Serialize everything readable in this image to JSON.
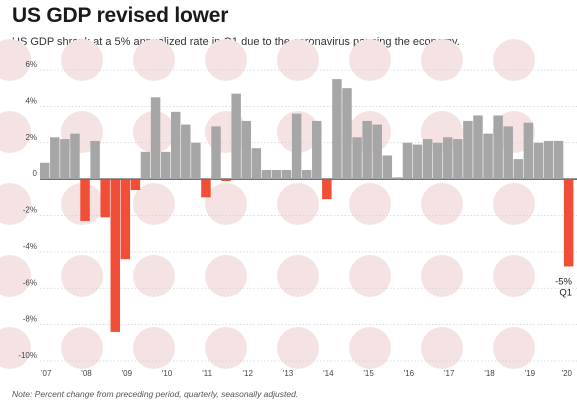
{
  "chart_data": {
    "type": "bar",
    "title": "US GDP revised lower",
    "subtitle": "US GDP shrank at a 5% annualized rate in Q1 due to the coronavirus pausing the economy.",
    "note": "Note: Percent change from preceding period, quarterly, seasonally adjusted.",
    "xlabel": "",
    "ylabel": "",
    "ylim": [
      -10,
      6
    ],
    "y_ticks": [
      "6%",
      "4%",
      "2%",
      "0",
      "-2%",
      "-4%",
      "-6%",
      "-8%",
      "-10%"
    ],
    "x_ticks": [
      "'07",
      "'08",
      "'09",
      "'10",
      "'11",
      "'12",
      "'13",
      "'14",
      "'15",
      "'16",
      "'17",
      "'18",
      "'19",
      "'20"
    ],
    "grid": true,
    "colors": {
      "positive": "#a6a6a6",
      "negative": "#f04e37",
      "background_pattern": "#f5e3e3"
    },
    "annotation": {
      "value": "-5%",
      "period": "Q1"
    },
    "categories": [
      "2007Q1",
      "2007Q2",
      "2007Q3",
      "2007Q4",
      "2008Q1",
      "2008Q2",
      "2008Q3",
      "2008Q4",
      "2009Q1",
      "2009Q2",
      "2009Q3",
      "2009Q4",
      "2010Q1",
      "2010Q2",
      "2010Q3",
      "2010Q4",
      "2011Q1",
      "2011Q2",
      "2011Q3",
      "2011Q4",
      "2012Q1",
      "2012Q2",
      "2012Q3",
      "2012Q4",
      "2013Q1",
      "2013Q2",
      "2013Q3",
      "2013Q4",
      "2014Q1",
      "2014Q2",
      "2014Q3",
      "2014Q4",
      "2015Q1",
      "2015Q2",
      "2015Q3",
      "2015Q4",
      "2016Q1",
      "2016Q2",
      "2016Q3",
      "2016Q4",
      "2017Q1",
      "2017Q2",
      "2017Q3",
      "2017Q4",
      "2018Q1",
      "2018Q2",
      "2018Q3",
      "2018Q4",
      "2019Q1",
      "2019Q2",
      "2019Q3",
      "2019Q4",
      "2020Q1"
    ],
    "values": [
      0.9,
      2.3,
      2.2,
      2.5,
      -2.3,
      2.1,
      -2.1,
      -8.4,
      -4.4,
      -0.6,
      1.5,
      4.5,
      1.5,
      3.7,
      3.0,
      2.0,
      -1.0,
      2.9,
      -0.1,
      4.7,
      3.2,
      1.7,
      0.5,
      0.5,
      0.5,
      3.6,
      0.5,
      3.2,
      -1.1,
      5.5,
      5.0,
      2.3,
      3.2,
      3.0,
      1.3,
      0.1,
      2.0,
      1.9,
      2.2,
      2.0,
      2.3,
      2.2,
      3.2,
      3.5,
      2.5,
      3.5,
      2.9,
      1.1,
      3.1,
      2.0,
      2.1,
      2.1,
      -4.8
    ]
  }
}
